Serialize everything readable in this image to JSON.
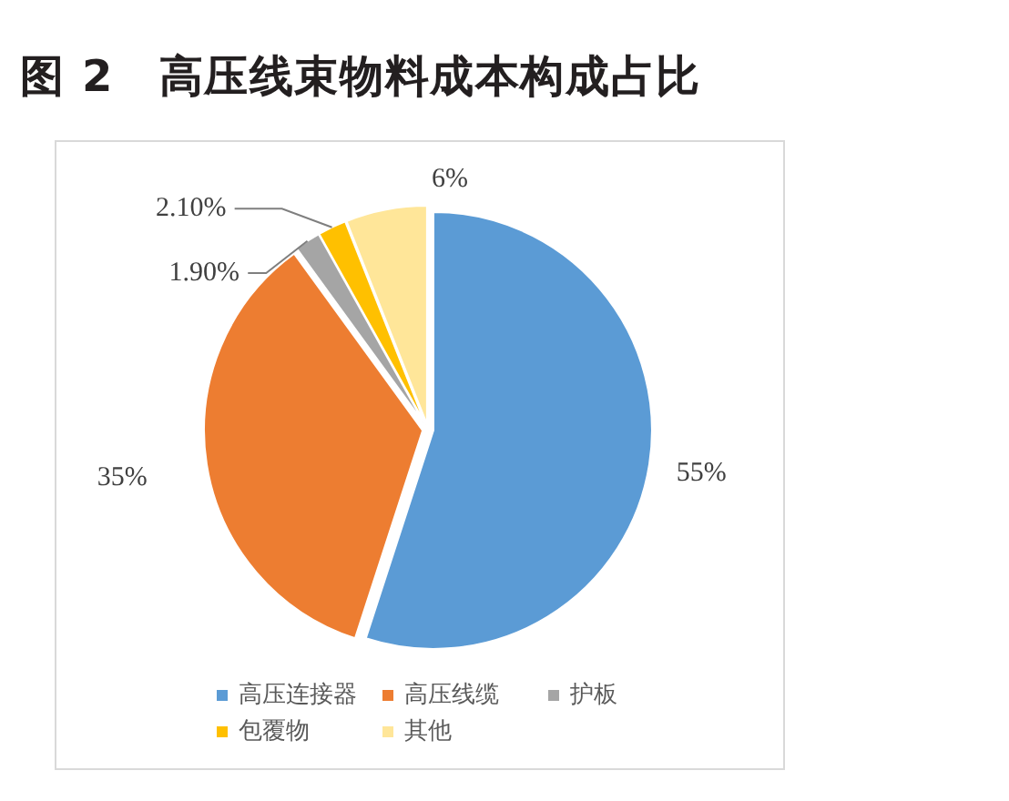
{
  "chart_data": {
    "type": "pie",
    "title": "图 2　高压线束物料成本构成占比",
    "categories": [
      "高压连接器",
      "高压线缆",
      "护板",
      "包覆物",
      "其他"
    ],
    "values": [
      55,
      35,
      1.9,
      2.1,
      6
    ],
    "colors": [
      "#5b9bd5",
      "#ed7d31",
      "#a5a5a5",
      "#ffc000",
      "#ffe699"
    ],
    "value_labels": [
      "55%",
      "35%",
      "1.90%",
      "2.10%",
      "6%"
    ],
    "legend": "bottom"
  }
}
